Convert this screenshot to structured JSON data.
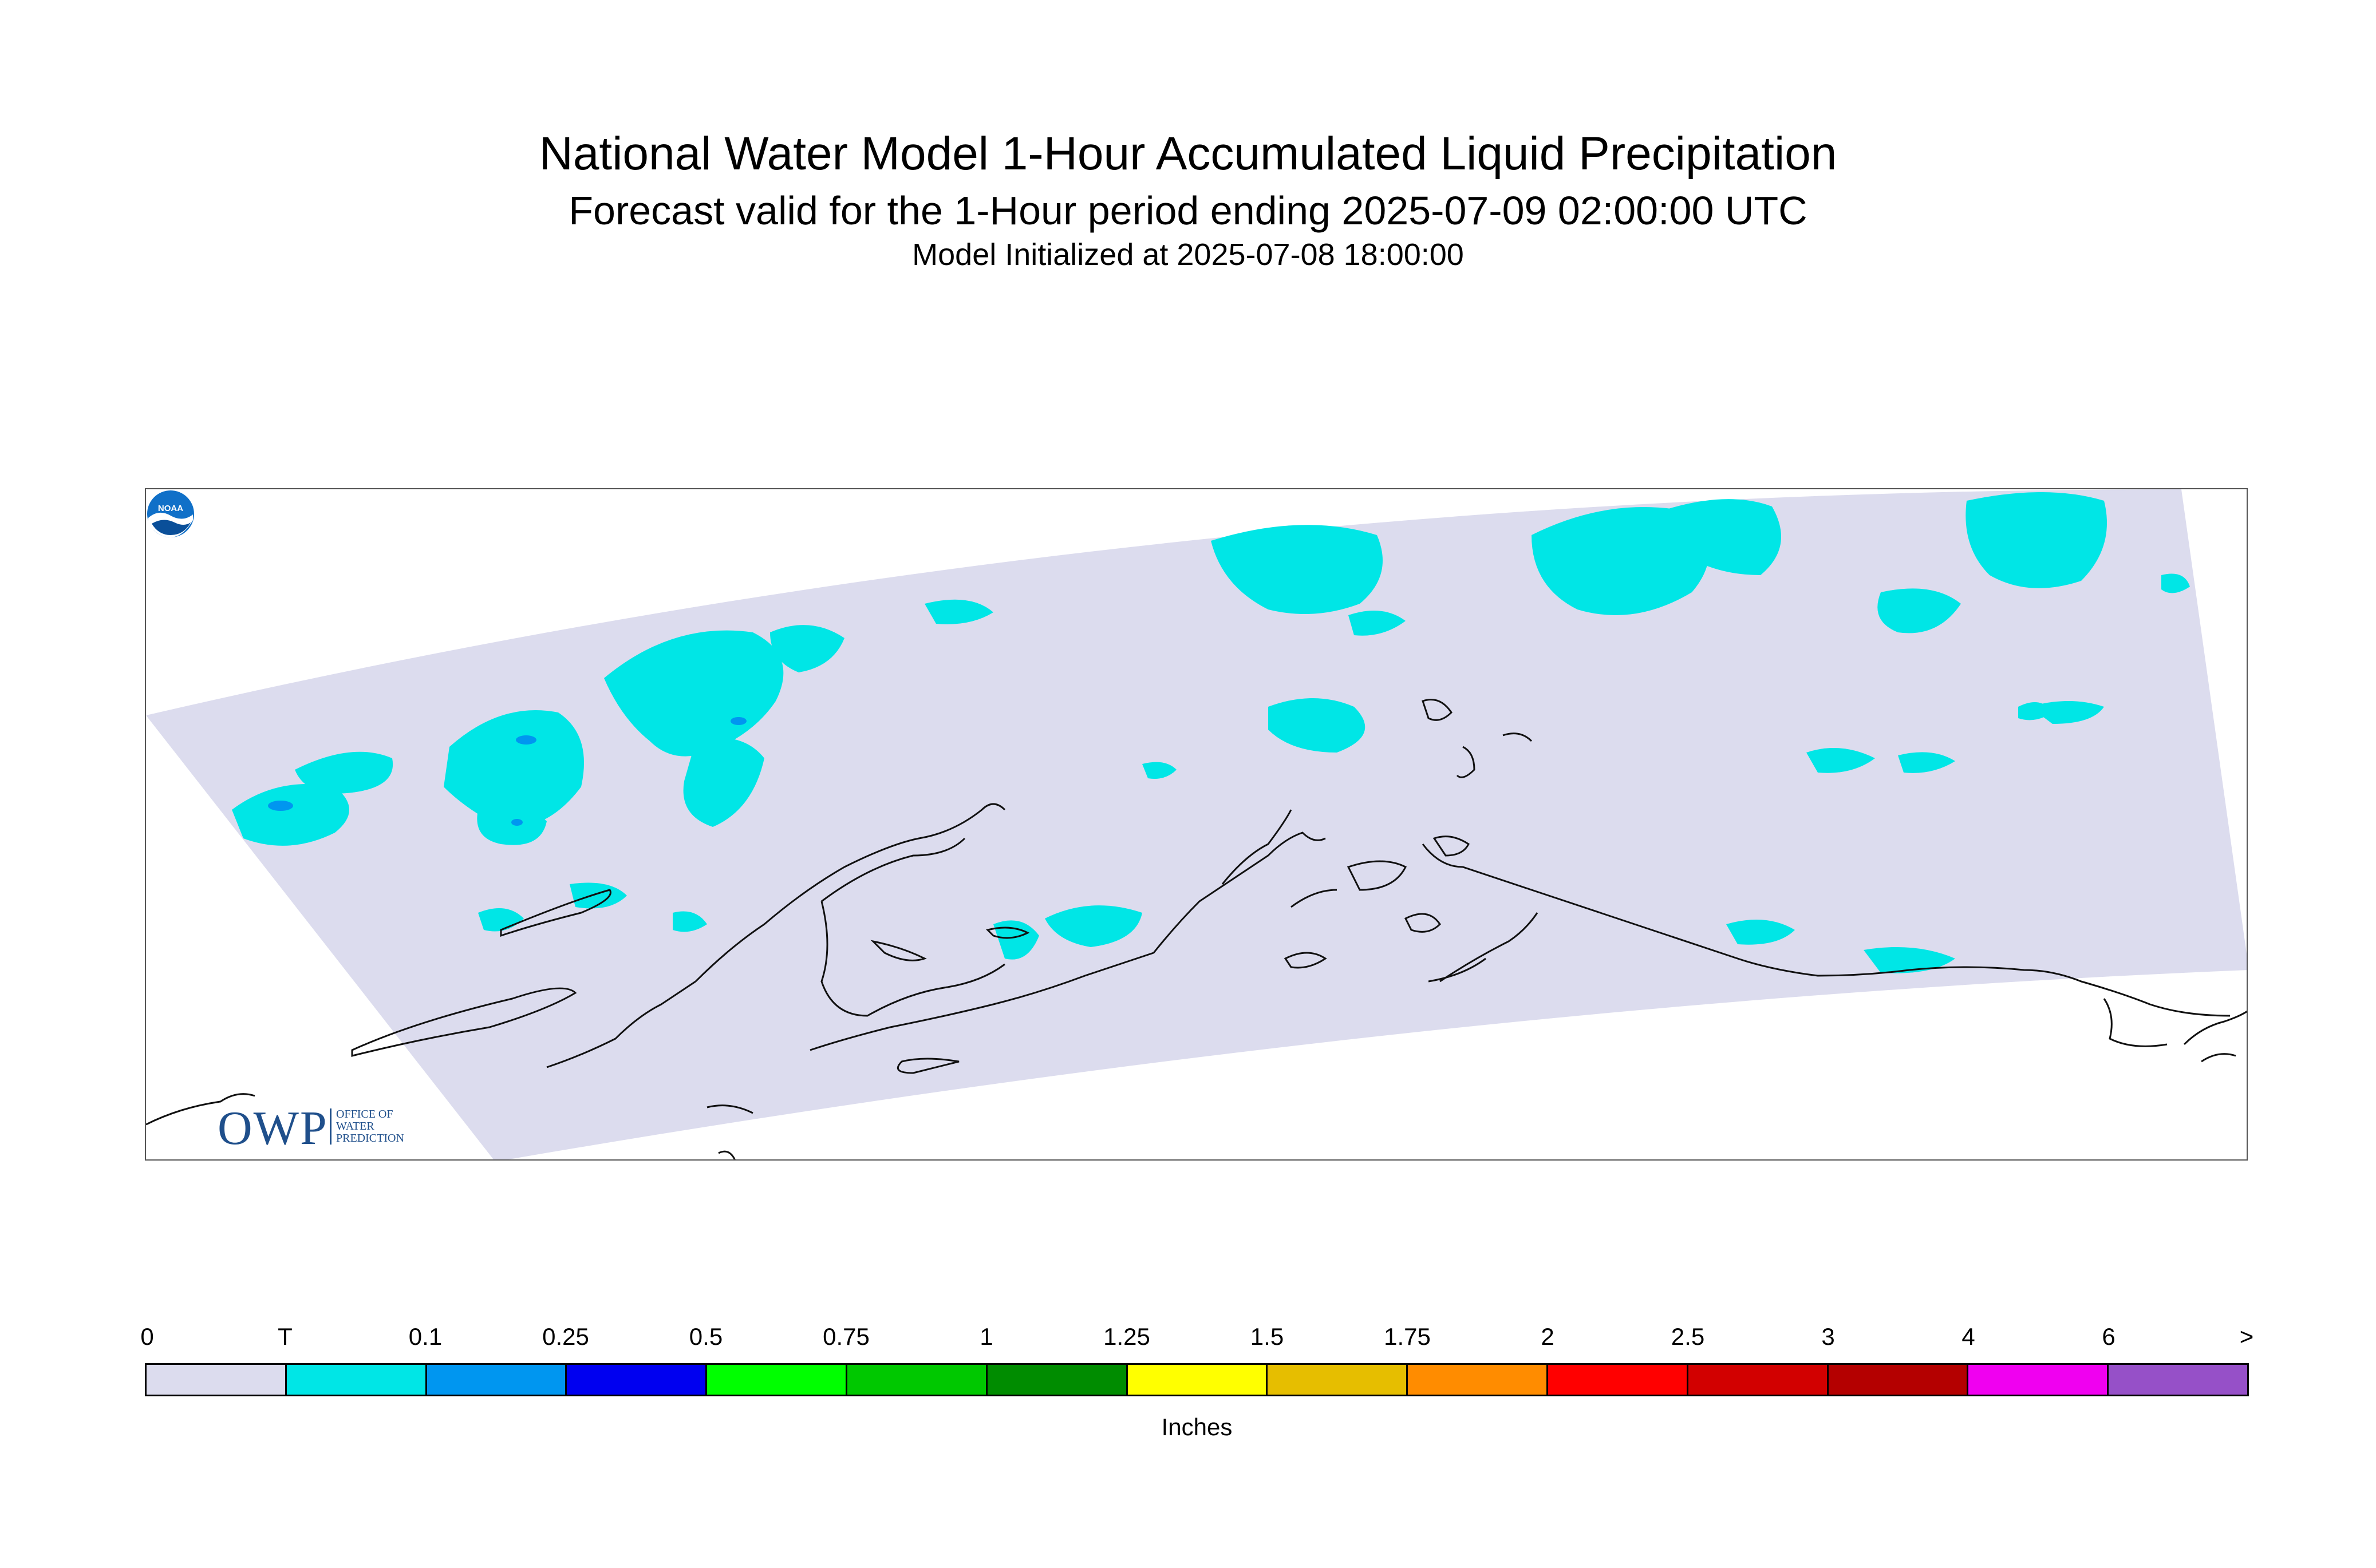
{
  "header": {
    "title": "National Water Model 1-Hour Accumulated Liquid Precipitation",
    "subtitle": "Forecast valid for the 1-Hour period ending 2025-07-09 02:00:00 UTC",
    "init_line": "Model Initialized at 2025-07-08 18:00:00"
  },
  "map": {
    "domain_fill": "#dcdcee",
    "trace_precip_fill": "#00e6e6",
    "light_precip_fill": "#0096f0",
    "coast_color": "#111111"
  },
  "logos": {
    "owp_letters": "OWP",
    "owp_lines": [
      "Office of",
      "Water",
      "Prediction"
    ],
    "noaa": "NOAA"
  },
  "legend": {
    "units": "Inches",
    "tick_labels": [
      "0",
      "T",
      "0.1",
      "0.25",
      "0.5",
      "0.75",
      "1",
      "1.25",
      "1.5",
      "1.75",
      "2",
      "2.5",
      "3",
      "4",
      "6",
      ">"
    ],
    "colors": [
      "#dcdcee",
      "#00e6e6",
      "#0096f0",
      "#0000f0",
      "#00ff00",
      "#00c800",
      "#008c00",
      "#ffff00",
      "#e6be00",
      "#ff8c00",
      "#ff0000",
      "#d20000",
      "#b40000",
      "#f000f0",
      "#9650c8"
    ]
  }
}
